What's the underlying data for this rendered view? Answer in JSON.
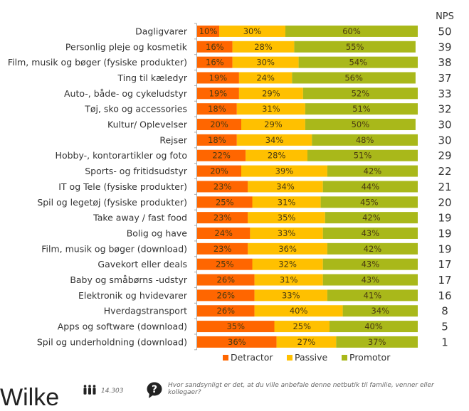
{
  "chart_data": {
    "type": "bar",
    "orientation": "horizontal",
    "stacked": true,
    "percent": true,
    "title": "",
    "xlabel": "",
    "ylabel": "",
    "xlim": [
      0,
      100
    ],
    "grid": false,
    "legend_position": "bottom",
    "categories": [
      "Dagligvarer",
      "Personlig pleje og kosmetik",
      "Film, musik og bøger (fysiske produkter)",
      "Ting til kæledyr",
      "Auto-, både- og cykeludstyr",
      "Tøj, sko og accessories",
      "Kultur/ Oplevelser",
      "Rejser",
      "Hobby-, kontorartikler og foto",
      "Sports- og fritidsudstyr",
      "IT og Tele (fysiske produkter)",
      "Spil og legetøj (fysiske produkter)",
      "Take away / fast food",
      "Bolig og have",
      "Film, musik og bøger (download)",
      "Gavekort eller deals",
      "Baby og småbørns -udstyr",
      "Elektronik og hvidevarer",
      "Hverdagstransport",
      "Apps og software (download)",
      "Spil og underholdning (download)"
    ],
    "series": [
      {
        "name": "Detractor",
        "color": "#ff6600",
        "values": [
          10,
          16,
          16,
          19,
          19,
          18,
          20,
          18,
          22,
          20,
          23,
          25,
          23,
          24,
          23,
          25,
          26,
          26,
          26,
          35,
          36
        ]
      },
      {
        "name": "Passive",
        "color": "#ffc000",
        "values": [
          30,
          28,
          30,
          24,
          29,
          31,
          29,
          34,
          28,
          39,
          34,
          31,
          35,
          33,
          36,
          32,
          31,
          33,
          40,
          25,
          27
        ]
      },
      {
        "name": "Promotor",
        "color": "#a9b81a",
        "values": [
          60,
          55,
          54,
          56,
          52,
          51,
          50,
          48,
          51,
          42,
          44,
          45,
          42,
          43,
          42,
          43,
          43,
          41,
          34,
          40,
          37
        ]
      }
    ],
    "label_suffix": "%",
    "nps": {
      "header": "NPS",
      "values": [
        50,
        39,
        38,
        37,
        33,
        32,
        30,
        30,
        29,
        22,
        21,
        20,
        19,
        19,
        19,
        17,
        17,
        16,
        8,
        5,
        1
      ]
    }
  },
  "footer": {
    "brand": "Wilke",
    "respondents_icon": "people-icon",
    "respondents": "14.303",
    "question_icon": "question-bubble-icon",
    "question": "Hvor sandsynligt er det, at du ville anbefale denne netbutik til familie, venner eller kollegaer?"
  }
}
